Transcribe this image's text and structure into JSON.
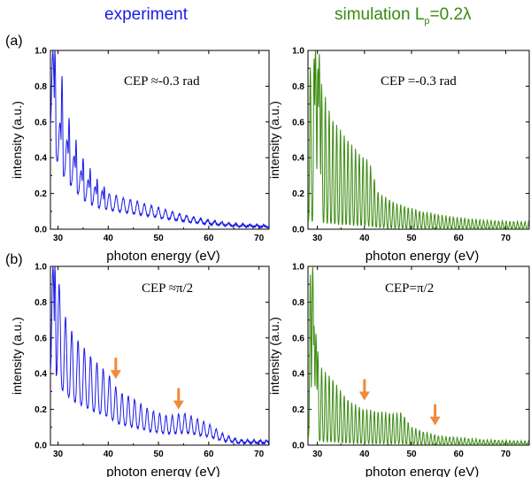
{
  "titles": {
    "left": "experiment",
    "right_prefix": "simulation L",
    "right_sub": "p",
    "right_suffix": "=0.2λ"
  },
  "row_labels": [
    "(a)",
    "(b)"
  ],
  "colors": {
    "experiment": "#1a1ae6",
    "simulation": "#3a8a10",
    "arrow": "#f08a3c"
  },
  "chart_data": [
    {
      "id": "a-exp",
      "type": "line",
      "series": [
        {
          "name": "",
          "color": "#1a1ae6"
        }
      ],
      "annotation": "CEP ≈-0.3 rad",
      "xlabel": "photon energy (eV)",
      "ylabel": "intensity (a.u.)",
      "xlim": [
        28.5,
        72
      ],
      "ylim": [
        0,
        1.0
      ],
      "xticks": [
        30,
        40,
        50,
        60,
        70
      ],
      "yticks": [
        0.0,
        0.2,
        0.4,
        0.6,
        0.8,
        1.0
      ],
      "ytick_labels": [
        "0.0",
        "0.2",
        "0.4",
        "0.6",
        "0.8",
        "1.0"
      ],
      "envelope": [
        [
          29,
          1.0
        ],
        [
          30,
          0.62
        ],
        [
          31,
          0.55
        ],
        [
          33,
          0.42
        ],
        [
          35,
          0.3
        ],
        [
          38,
          0.22
        ],
        [
          40,
          0.2
        ],
        [
          45,
          0.16
        ],
        [
          50,
          0.12
        ],
        [
          55,
          0.08
        ],
        [
          60,
          0.05
        ],
        [
          65,
          0.03
        ],
        [
          72,
          0.02
        ]
      ],
      "peaks": [
        [
          29.4,
          1.0
        ],
        [
          30.8,
          0.86
        ],
        [
          32.2,
          0.62
        ],
        [
          33.6,
          0.5
        ],
        [
          35.0,
          0.4
        ],
        [
          36.4,
          0.34
        ],
        [
          37.8,
          0.28
        ],
        [
          39.2,
          0.24
        ]
      ],
      "spacing": 1.4,
      "floor": 0.55,
      "arrows": []
    },
    {
      "id": "a-sim",
      "type": "line",
      "series": [
        {
          "name": "",
          "color": "#3a8a10"
        }
      ],
      "annotation": "CEP =-0.3 rad",
      "xlabel": "photon energy (eV)",
      "ylabel": "intensity (a.u.)",
      "xlim": [
        28,
        75
      ],
      "ylim": [
        0,
        1.0
      ],
      "xticks": [
        30,
        40,
        50,
        60,
        70
      ],
      "yticks": [
        0.0,
        0.2,
        0.4,
        0.6,
        0.8,
        1.0
      ],
      "ytick_labels": [
        "0.0",
        "0.2",
        "0.4",
        "0.6",
        "0.8",
        "1.0"
      ],
      "envelope": [
        [
          28.5,
          0.9
        ],
        [
          29.5,
          0.97
        ],
        [
          31,
          0.8
        ],
        [
          33,
          0.62
        ],
        [
          35,
          0.55
        ],
        [
          37,
          0.48
        ],
        [
          39,
          0.42
        ],
        [
          41,
          0.38
        ],
        [
          43,
          0.2
        ],
        [
          47,
          0.14
        ],
        [
          52,
          0.1
        ],
        [
          58,
          0.07
        ],
        [
          65,
          0.05
        ],
        [
          75,
          0.04
        ]
      ],
      "peaks": [
        [
          29.6,
          1.0
        ],
        [
          30.4,
          0.98
        ]
      ],
      "spacing": 0.8,
      "floor": 0.05,
      "arrows": []
    },
    {
      "id": "b-exp",
      "type": "line",
      "series": [
        {
          "name": "",
          "color": "#1a1ae6"
        }
      ],
      "annotation": "CEP ≈π/2",
      "xlabel": "photon energy (eV)",
      "ylabel": "intensity (a.u.)",
      "xlim": [
        28.5,
        72
      ],
      "ylim": [
        0,
        1.0
      ],
      "xticks": [
        30,
        40,
        50,
        60,
        70
      ],
      "yticks": [
        0.0,
        0.2,
        0.4,
        0.6,
        0.8,
        1.0
      ],
      "ytick_labels": [
        "0.0",
        "0.2",
        "0.4",
        "0.6",
        "0.8",
        "1.0"
      ],
      "envelope": [
        [
          29,
          1.0
        ],
        [
          30,
          0.95
        ],
        [
          31,
          0.75
        ],
        [
          33,
          0.62
        ],
        [
          35,
          0.55
        ],
        [
          37,
          0.48
        ],
        [
          40,
          0.4
        ],
        [
          42,
          0.3
        ],
        [
          45,
          0.26
        ],
        [
          48,
          0.2
        ],
        [
          52,
          0.16
        ],
        [
          55,
          0.18
        ],
        [
          60,
          0.12
        ],
        [
          63,
          0.06
        ],
        [
          66,
          0.03
        ],
        [
          72,
          0.025
        ]
      ],
      "peaks": [
        [
          29.4,
          1.0
        ]
      ],
      "spacing": 1.25,
      "floor": 0.4,
      "arrows": [
        [
          41.5,
          0.36
        ],
        [
          54,
          0.19
        ]
      ]
    },
    {
      "id": "b-sim",
      "type": "line",
      "series": [
        {
          "name": "",
          "color": "#3a8a10"
        }
      ],
      "annotation": "CEP=π/2",
      "xlabel": "photon energy (eV)",
      "ylabel": "intensity (a.u.)",
      "xlim": [
        28,
        75
      ],
      "ylim": [
        0,
        1.0
      ],
      "xticks": [
        30,
        40,
        50,
        60,
        70
      ],
      "yticks": [
        0.0,
        0.2,
        0.4,
        0.6,
        0.8,
        1.0
      ],
      "ytick_labels": [
        "0.0",
        "0.2",
        "0.4",
        "0.6",
        "0.8",
        "1.0"
      ],
      "envelope": [
        [
          28.5,
          0.95
        ],
        [
          29.5,
          0.6
        ],
        [
          31,
          0.42
        ],
        [
          33,
          0.38
        ],
        [
          35,
          0.3
        ],
        [
          37,
          0.24
        ],
        [
          40,
          0.2
        ],
        [
          45,
          0.18
        ],
        [
          48,
          0.18
        ],
        [
          50,
          0.1
        ],
        [
          53,
          0.07
        ],
        [
          56,
          0.05
        ],
        [
          65,
          0.03
        ],
        [
          75,
          0.02
        ]
      ],
      "peaks": [
        [
          29.0,
          1.0
        ],
        [
          29.7,
          0.62
        ]
      ],
      "spacing": 0.8,
      "floor": 0.05,
      "arrows": [
        [
          40,
          0.24
        ],
        [
          55,
          0.1
        ]
      ]
    }
  ]
}
